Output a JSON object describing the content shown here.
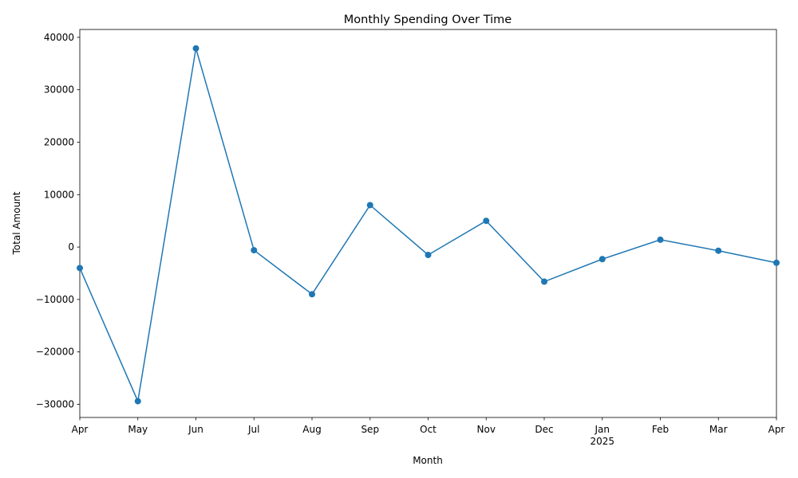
{
  "chart_data": {
    "type": "line",
    "title": "Monthly Spending Over Time",
    "xlabel": "Month",
    "ylabel": "Total Amount",
    "x_tick_labels": [
      "Apr",
      "May",
      "Jun",
      "Jul",
      "Aug",
      "Sep",
      "Oct",
      "Nov",
      "Dec",
      "Jan",
      "Feb",
      "Mar",
      "Apr"
    ],
    "x_year_label": "2025",
    "x_year_label_under": "Jan",
    "y_ticks": [
      -30000,
      -20000,
      -10000,
      0,
      10000,
      20000,
      30000,
      40000
    ],
    "ylim": [
      -32500,
      41500
    ],
    "series": [
      {
        "color": "#1f77b4",
        "marker": "circle",
        "values": [
          -4000,
          -29400,
          37900,
          -600,
          -9000,
          8000,
          -1500,
          5000,
          -6600,
          -2300,
          1400,
          -700,
          -3000
        ]
      }
    ],
    "grid": false,
    "legend": "none"
  }
}
